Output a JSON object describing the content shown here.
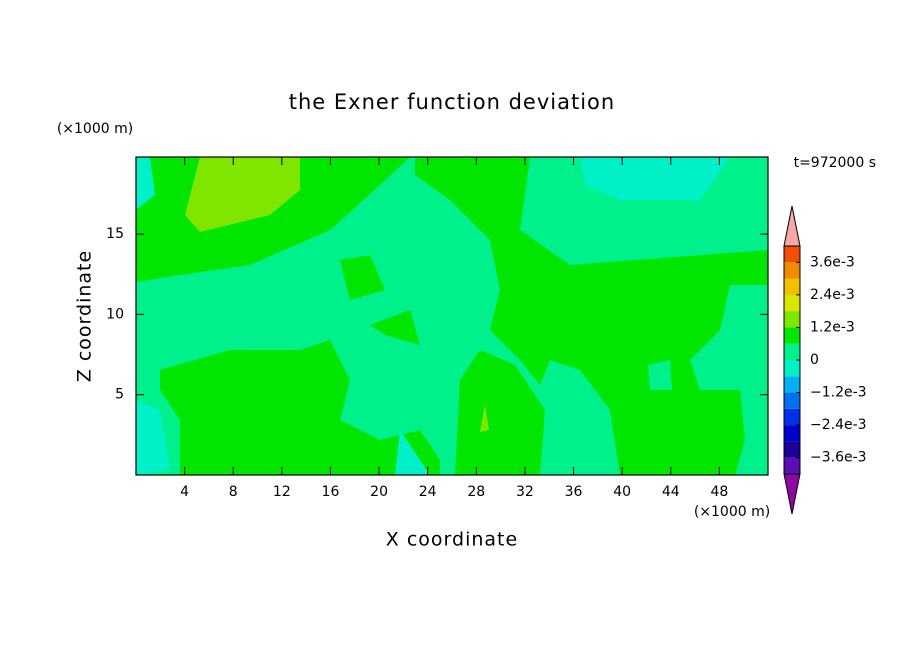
{
  "chart_data": {
    "type": "contour",
    "title": "the Exner function deviation",
    "x_label": "X coordinate",
    "y_label": "Z coordinate",
    "x_unit": "(×1000 m)",
    "y_unit": "(×1000 m)",
    "time_label": "t=972000 s",
    "xlim": [
      0,
      52
    ],
    "xticks": [
      4,
      8,
      12,
      16,
      20,
      24,
      28,
      32,
      36,
      40,
      44,
      48
    ],
    "ylim": [
      0,
      19.8
    ],
    "yticks": [
      5,
      10,
      15
    ],
    "levels": [
      -0.0042,
      -0.0036,
      -0.003,
      -0.0024,
      -0.0018,
      -0.0012,
      -0.0006,
      0,
      0.0006,
      0.0012,
      0.0018,
      0.0024,
      0.003,
      0.0036,
      0.0042
    ],
    "colors": [
      "#5a10b4",
      "#1a0096",
      "#0000c8",
      "#0030e6",
      "#0070f0",
      "#00b0f0",
      "#00f0c8",
      "#00f08c",
      "#00e600",
      "#80e600",
      "#d8e600",
      "#f0c000",
      "#f08c00",
      "#f05000",
      "#f01414"
    ],
    "extend_colors": [
      "#8c0aa0",
      "#f4a8a8"
    ],
    "colorbar_ticks": [
      {
        "value": 0.0036,
        "label": "3.6e-3"
      },
      {
        "value": 0.0024,
        "label": "2.4e-3"
      },
      {
        "value": 0.0012,
        "label": "1.2e-3"
      },
      0,
      {
        "value": -0.0012,
        "label": "−1.2e-3"
      },
      {
        "value": -0.0024,
        "label": "−2.4e-3"
      },
      {
        "value": -0.0036,
        "label": "−3.6e-3"
      }
    ]
  }
}
